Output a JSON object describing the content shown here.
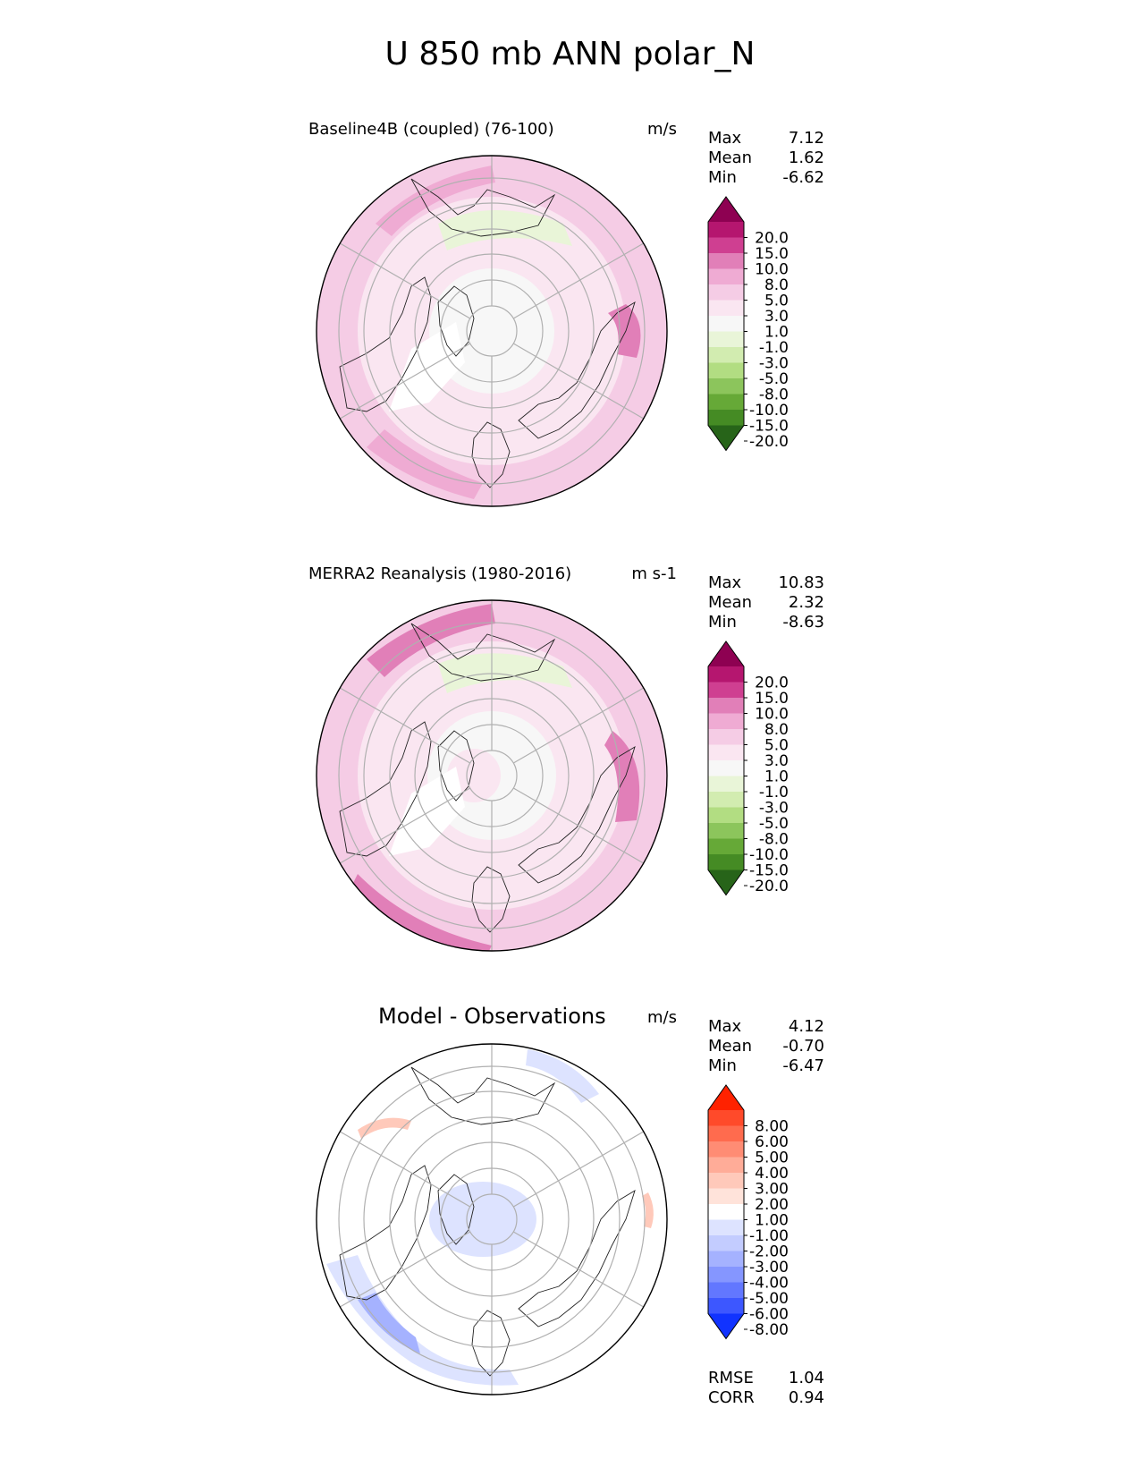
{
  "figure_title": "U 850 mb ANN polar_N",
  "chart_data": [
    {
      "type": "contour-map",
      "projection": "north-polar-stereographic",
      "title": "Baseline4B (coupled) (76-100)",
      "units": "m/s",
      "stats": {
        "max_label": "Max",
        "max": "7.12",
        "mean_label": "Mean",
        "mean": "1.62",
        "min_label": "Min",
        "min": "-6.62"
      },
      "colorbar": {
        "levels": [
          "20.0",
          "15.0",
          "10.0",
          "8.0",
          "5.0",
          "3.0",
          "1.0",
          "-1.0",
          "-3.0",
          "-5.0",
          "-8.0",
          "-10.0",
          "-15.0",
          "-20.0"
        ],
        "colors": [
          "#8e0152",
          "#b5166f",
          "#cf3f91",
          "#e17fb8",
          "#efabd3",
          "#f5cce5",
          "#fae6f1",
          "#f7f7f7",
          "#e9f5d8",
          "#d2ecb0",
          "#b2dd82",
          "#8cc55c",
          "#66a937",
          "#458b24",
          "#276419"
        ]
      }
    },
    {
      "type": "contour-map",
      "projection": "north-polar-stereographic",
      "title": "MERRA2 Reanalysis (1980-2016)",
      "units": "m s-1",
      "stats": {
        "max_label": "Max",
        "max": "10.83",
        "mean_label": "Mean",
        "mean": "2.32",
        "min_label": "Min",
        "min": "-8.63"
      },
      "colorbar": {
        "levels": [
          "20.0",
          "15.0",
          "10.0",
          "8.0",
          "5.0",
          "3.0",
          "1.0",
          "-1.0",
          "-3.0",
          "-5.0",
          "-8.0",
          "-10.0",
          "-15.0",
          "-20.0"
        ],
        "colors": [
          "#8e0152",
          "#b5166f",
          "#cf3f91",
          "#e17fb8",
          "#efabd3",
          "#f5cce5",
          "#fae6f1",
          "#f7f7f7",
          "#e9f5d8",
          "#d2ecb0",
          "#b2dd82",
          "#8cc55c",
          "#66a937",
          "#458b24",
          "#276419"
        ]
      }
    },
    {
      "type": "contour-map",
      "projection": "north-polar-stereographic",
      "title": "Model - Observations",
      "units": "m/s",
      "stats": {
        "max_label": "Max",
        "max": "4.12",
        "mean_label": "Mean",
        "mean": "-0.70",
        "min_label": "Min",
        "min": "-6.47"
      },
      "metrics": {
        "rmse_label": "RMSE",
        "rmse": "1.04",
        "corr_label": "CORR",
        "corr": "0.94"
      },
      "colorbar": {
        "levels": [
          "8.00",
          "6.00",
          "5.00",
          "4.00",
          "3.00",
          "2.00",
          "1.00",
          "-1.00",
          "-2.00",
          "-3.00",
          "-4.00",
          "-5.00",
          "-6.00",
          "-8.00"
        ],
        "colors": [
          "#ff2200",
          "#ff4a2a",
          "#ff6b4e",
          "#ff8c74",
          "#ffac98",
          "#ffc9ba",
          "#ffe3da",
          "#ffffff",
          "#dde3ff",
          "#c3ccff",
          "#a5b2ff",
          "#8596ff",
          "#6277ff",
          "#3d57ff",
          "#1133ff"
        ]
      }
    }
  ]
}
